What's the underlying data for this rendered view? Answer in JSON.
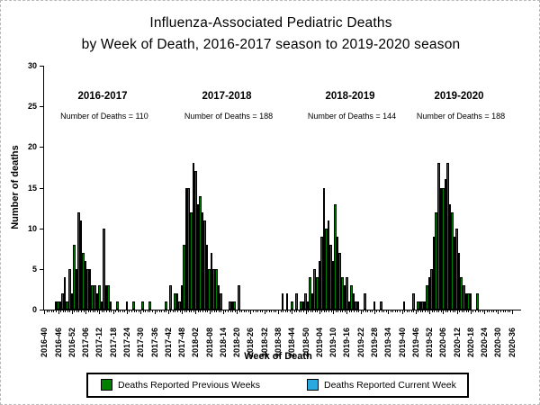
{
  "title_line1": "Influenza-Associated Pediatric Deaths",
  "title_line2": "by Week of Death, 2016-2017 season to 2019-2020 season",
  "legend": {
    "previous_label": "Deaths Reported Previous Weeks",
    "current_label": "Deaths Reported Current Week",
    "previous_color": "#008000",
    "current_color": "#29A9E0"
  },
  "chart_data": {
    "type": "bar",
    "title": "Influenza-Associated Pediatric Deaths by Week of Death, 2016-2017 season to 2019-2020 season",
    "xlabel": "Week of Death",
    "ylabel": "Number of deaths",
    "ylim": [
      0,
      30
    ],
    "yticks": [
      0,
      5,
      10,
      15,
      20,
      25,
      30
    ],
    "x_start_week": "2016-40",
    "x_end_week": "2020-36",
    "xtick_label_every": 6,
    "xtick_labels": [
      "2016-40",
      "2016-46",
      "2016-52",
      "2017-06",
      "2017-12",
      "2017-18",
      "2017-24",
      "2017-30",
      "2017-36",
      "2017-42",
      "2017-48",
      "2018-02",
      "2018-08",
      "2018-14",
      "2018-20",
      "2018-26",
      "2018-32",
      "2018-38",
      "2018-44",
      "2018-50",
      "2019-04",
      "2019-10",
      "2019-16",
      "2019-22",
      "2019-28",
      "2019-34",
      "2019-40",
      "2019-46",
      "2019-52",
      "2020-06",
      "2020-12",
      "2020-18",
      "2020-24",
      "2020-30",
      "2020-36"
    ],
    "bar_color": "#008000",
    "grid": false,
    "legend_position": "bottom",
    "seasons": [
      {
        "label": "2016-2017",
        "deaths_label": "Number of Deaths = 110",
        "total": 110
      },
      {
        "label": "2017-2018",
        "deaths_label": "Number of Deaths = 188",
        "total": 188
      },
      {
        "label": "2018-2019",
        "deaths_label": "Number of Deaths = 144",
        "total": 144
      },
      {
        "label": "2019-2020",
        "deaths_label": "Number of Deaths = 188",
        "total": 188
      }
    ],
    "values": {
      "2016-45": 1,
      "2016-46": 1,
      "2016-47": 1,
      "2016-48": 2,
      "2016-49": 4,
      "2016-50": 1,
      "2016-51": 5,
      "2016-52": 2,
      "2017-01": 8,
      "2017-02": 5,
      "2017-03": 12,
      "2017-04": 11,
      "2017-05": 7,
      "2017-06": 6,
      "2017-07": 5,
      "2017-08": 5,
      "2017-09": 3,
      "2017-10": 3,
      "2017-11": 2,
      "2017-12": 3,
      "2017-13": 1,
      "2017-14": 10,
      "2017-15": 3,
      "2017-16": 3,
      "2017-17": 1,
      "2017-20": 1,
      "2017-24": 1,
      "2017-27": 1,
      "2017-31": 1,
      "2017-34": 1,
      "2017-41": 1,
      "2017-43": 3,
      "2017-45": 2,
      "2017-46": 2,
      "2017-47": 1,
      "2017-48": 3,
      "2017-49": 8,
      "2017-50": 15,
      "2017-51": 15,
      "2017-52": 12,
      "2018-01": 18,
      "2018-02": 17,
      "2018-03": 13,
      "2018-04": 14,
      "2018-05": 12,
      "2018-06": 11,
      "2018-07": 8,
      "2018-08": 5,
      "2018-09": 7,
      "2018-10": 5,
      "2018-11": 5,
      "2018-12": 3,
      "2018-13": 2,
      "2018-17": 1,
      "2018-18": 1,
      "2018-19": 1,
      "2018-21": 3,
      "2018-40": 2,
      "2018-42": 2,
      "2018-44": 1,
      "2018-46": 2,
      "2018-48": 1,
      "2018-49": 1,
      "2018-50": 2,
      "2018-51": 1,
      "2018-52": 4,
      "2019-01": 2,
      "2019-02": 5,
      "2019-03": 4,
      "2019-04": 6,
      "2019-05": 9,
      "2019-06": 15,
      "2019-07": 10,
      "2019-08": 11,
      "2019-09": 8,
      "2019-10": 6,
      "2019-11": 13,
      "2019-12": 9,
      "2019-13": 7,
      "2019-14": 4,
      "2019-15": 3,
      "2019-16": 4,
      "2019-17": 1,
      "2019-18": 3,
      "2019-19": 2,
      "2019-20": 1,
      "2019-21": 1,
      "2019-24": 2,
      "2019-28": 1,
      "2019-31": 1,
      "2019-41": 1,
      "2019-45": 2,
      "2019-47": 1,
      "2019-48": 1,
      "2019-49": 1,
      "2019-50": 1,
      "2019-51": 3,
      "2019-52": 4,
      "2020-01": 5,
      "2020-02": 9,
      "2020-03": 12,
      "2020-04": 18,
      "2020-05": 15,
      "2020-06": 15,
      "2020-07": 16,
      "2020-08": 18,
      "2020-09": 13,
      "2020-10": 12,
      "2020-11": 9,
      "2020-12": 10,
      "2020-13": 7,
      "2020-14": 4,
      "2020-15": 3,
      "2020-16": 2,
      "2020-17": 2,
      "2020-18": 2,
      "2020-21": 2
    }
  }
}
